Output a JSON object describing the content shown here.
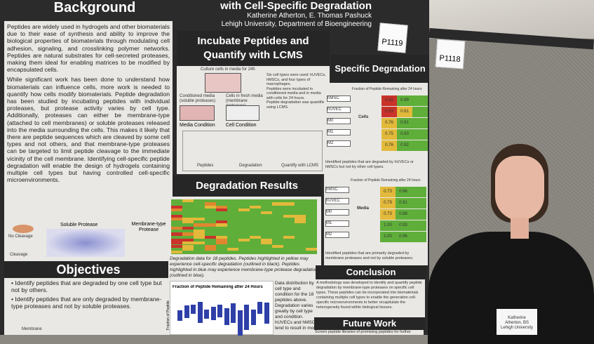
{
  "poster": {
    "title_fragment": "with Cell-Specific Degradation",
    "authors": "Katherine Atherton, E. Thomas Pashuck",
    "affiliation": "Lehigh University, Department of Bioengineering",
    "background": {
      "heading": "Background",
      "p1": "Peptides are widely used in hydrogels and other biomaterials due to their ease of synthesis and ability to improve the biological properties of biomaterials through modulating cell adhesion, signaling, and crosslinking polymer networks. Peptides are natural substrates for cell-secreted proteases, making them ideal for enabling matrices to be modified by encapsulated cells.",
      "p2": "While significant work has been done to understand how biomaterials can influence cells, more work is needed to quantify how cells modify biomaterials. Peptide degradation has been studied by incubating peptides with individual proteases, but protease activity varies by cell type. Additionally, proteases can either be membrane-type (attached to cell membranes) or soluble proteases released into the media surrounding the cells. This makes it likely that there are peptide sequences which are cleaved by some cell types and not others, and that membrane-type proteases can be targeted to limit peptide cleavage to the immediate vicinity of the cell membrane. Identifying cell-specific peptide degradation will enable the design of hydrogels containing multiple cell types but having controlled cell-specific microenvironments.",
      "fig_labels": {
        "no_cleavage": "No Cleavage",
        "cleavage": "Cleavage",
        "soluble": "Soluble Protease",
        "membrane": "Membrane-type Protease"
      }
    },
    "objectives": {
      "heading": "Objectives",
      "items": [
        "Identify peptides that are degraded by one cell type but not by others.",
        "Identify peptides that are only degraded by membrane-type proteases and not by soluble proteases."
      ],
      "fig_label": "Membrane"
    },
    "incubate": {
      "heading": "Incubate Peptides and Quantify with LCMS",
      "fig_labels": {
        "culture": "Culture cells in media for 24h",
        "conditioned": "Conditioned media (soluble proteases)",
        "fresh": "Cells in fresh media (membrane proteases)",
        "media_condition": "Media Condition",
        "cell_condition": "Cell Condition",
        "peptides": "Peptides",
        "degradation": "Degradation",
        "quantify": "Quantify with LCMS"
      },
      "bullets": [
        "Six cell types were used: hUVECs, hMSCs, and four types of macrophages.",
        "Peptides were incubated in conditioned media and in media with cells for 24 hours.",
        "Peptide degradation was quantified using LCMS."
      ]
    },
    "results": {
      "heading": "Degradation Results",
      "caption": "Degradation data for 18 peptides. Peptides highlighted in yellow may experience cell-specific degradation (outlined in black). Peptides highlighted in blue may experience membrane-type protease degradation (outlined in blue).",
      "chart_title": "Fraction of Peptide Remaining after 24 Hours",
      "chart_ylabel": "Fraction of Peptide",
      "chart_caption": "Data distribution by cell type and condition for the 18 peptides above. Degradation varies greatly by cell type and condition. hUVECs and hMSCs tend to result in more"
    },
    "specific": {
      "heading": "Specific Degradation",
      "table_title": "Fraction of Peptide Remaining after 24 hours",
      "rows": [
        "hMSC",
        "hUVEC",
        "M0",
        "M1",
        "M2"
      ],
      "cells_label": "Cells",
      "media_label": "Media",
      "cells_values": [
        [
          "0.55",
          "0.99",
          ""
        ],
        [
          "0.53",
          "0.61",
          ""
        ],
        [
          "0.76",
          "0.91",
          ""
        ],
        [
          "0.75",
          "0.93",
          ""
        ],
        [
          "0.76",
          "0.92",
          ""
        ]
      ],
      "media_values": [
        [
          "0.73",
          "0.96",
          ""
        ],
        [
          "0.79",
          "0.91",
          ""
        ],
        [
          "0.73",
          "0.88",
          ""
        ],
        [
          "1.00",
          "0.93",
          ""
        ],
        [
          "1.00",
          "0.96",
          ""
        ]
      ],
      "caption1": "Identified peptides that are degraded by hUVECs or hMSCs but not by other cell types.",
      "caption2": "Identified peptides that are primarily degraded by membrane proteases and not by soluble proteases."
    },
    "conclusion": {
      "heading": "Conclusion",
      "text": "A methodology was developed to identify and quantify peptide degradation by membrane-type proteases on specific cell types. These peptides can be incorporated into biomaterials containing multiple cell types to enable the generation cell-specific microenvironments to better recapitulate the heterogeneity found within biological tissues."
    },
    "future": {
      "heading": "Future Work",
      "text": "Screen peptide libraries of promising peptides for further"
    }
  },
  "tags": [
    "P1119",
    "P1118"
  ],
  "badge": {
    "name": "Katherine",
    "line2": "Atherton, BS",
    "line3": "Lehigh University"
  },
  "colors": {
    "header": "#262626",
    "panel": "#e9e8e4",
    "red": "#c9332a",
    "green": "#5fae3a",
    "yellow": "#e2b93a",
    "box": "#2e3fa8"
  }
}
